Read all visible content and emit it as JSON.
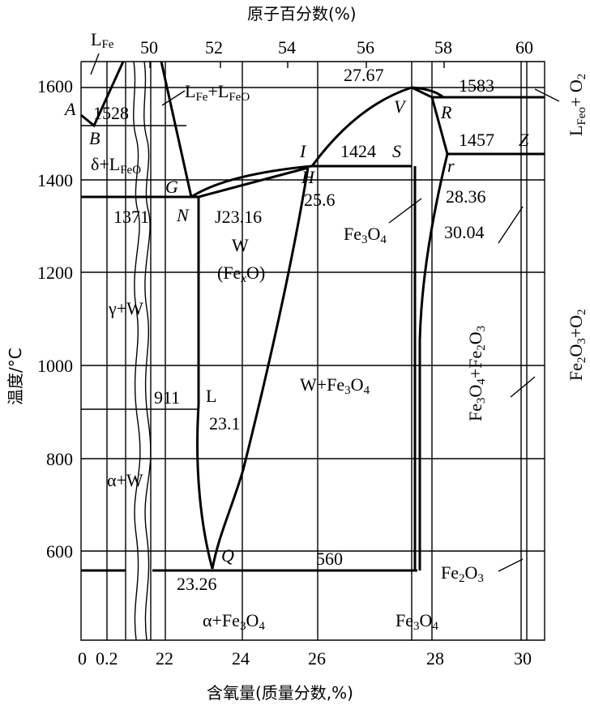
{
  "diagram": {
    "top_axis_title": "原子百分数(%)",
    "bottom_axis_title": "含氧量(质量分数,%)",
    "y_axis_title": "温度/°C",
    "top_ticks": [
      "50",
      "52",
      "54",
      "56",
      "58",
      "60"
    ],
    "bottom_ticks": [
      "0",
      "0.2",
      "22",
      "24",
      "26",
      "28",
      "30"
    ],
    "y_ticks": [
      "1600",
      "1400",
      "1200",
      "1000",
      "800",
      "600"
    ],
    "points": {
      "A": "A",
      "B": "B",
      "G": "G",
      "N": "N",
      "I": "I",
      "H": "H",
      "S": "S",
      "V": "V",
      "R": "R",
      "r": "r",
      "Z": "Z",
      "Q": "Q",
      "J": "J"
    },
    "values": {
      "t1528": "1528",
      "t1371": "1371",
      "t1424": "1424",
      "t1583": "1583",
      "t1457": "1457",
      "t911": "911",
      "t560": "560",
      "c2767": "27.67",
      "c2316": "23.16",
      "c256": "25.6",
      "c2836": "28.36",
      "c3004": "30.04",
      "c231": "23.1",
      "c2326": "23.26"
    },
    "regions": {
      "LFe": {
        "main": "L",
        "sub": "Fe"
      },
      "LFe_LFeO": {
        "a": "L",
        "a_sub": "Fe",
        "plus": "+",
        "b": "L",
        "b_sub": "FeO"
      },
      "delta_LFeO": {
        "a": "δ+L",
        "a_sub": "FeO"
      },
      "W": "W",
      "FexO": {
        "a": "(Fe",
        "a_sub": "x",
        "b": "O)"
      },
      "gamma_W": "γ+W",
      "alpha_W": "α+W",
      "L_point": "L",
      "W_Fe3O4": {
        "a": "W+Fe",
        "a_sub": "3",
        "b": "O",
        "b_sub": "4"
      },
      "Fe3O4_upper": {
        "a": "Fe",
        "a_sub": "3",
        "b": "O",
        "b_sub": "4"
      },
      "Fe3O4_Fe2O3": {
        "a": "Fe",
        "a_sub": "3",
        "b": "O",
        "b_sub": "4",
        "c": "+Fe",
        "c_sub": "2",
        "d": "O",
        "d_sub": "3"
      },
      "Fe2O3_O2": {
        "a": "Fe",
        "a_sub": "2",
        "b": "O",
        "b_sub": "3",
        "c": "+O",
        "c_sub": "2"
      },
      "LFeO_O2": {
        "a": "L",
        "a_sub": "Feo",
        "c": "+ O",
        "c_sub": "2"
      },
      "Fe2O3": {
        "a": "Fe",
        "a_sub": "2",
        "b": "O",
        "b_sub": "3"
      },
      "alpha_Fe3O4": {
        "a": "α+Fe",
        "a_sub": "3",
        "b": "O",
        "b_sub": "4"
      },
      "Fe3O4_lower": {
        "a": "Fe",
        "a_sub": "3",
        "b": "O",
        "b_sub": "4"
      }
    }
  }
}
